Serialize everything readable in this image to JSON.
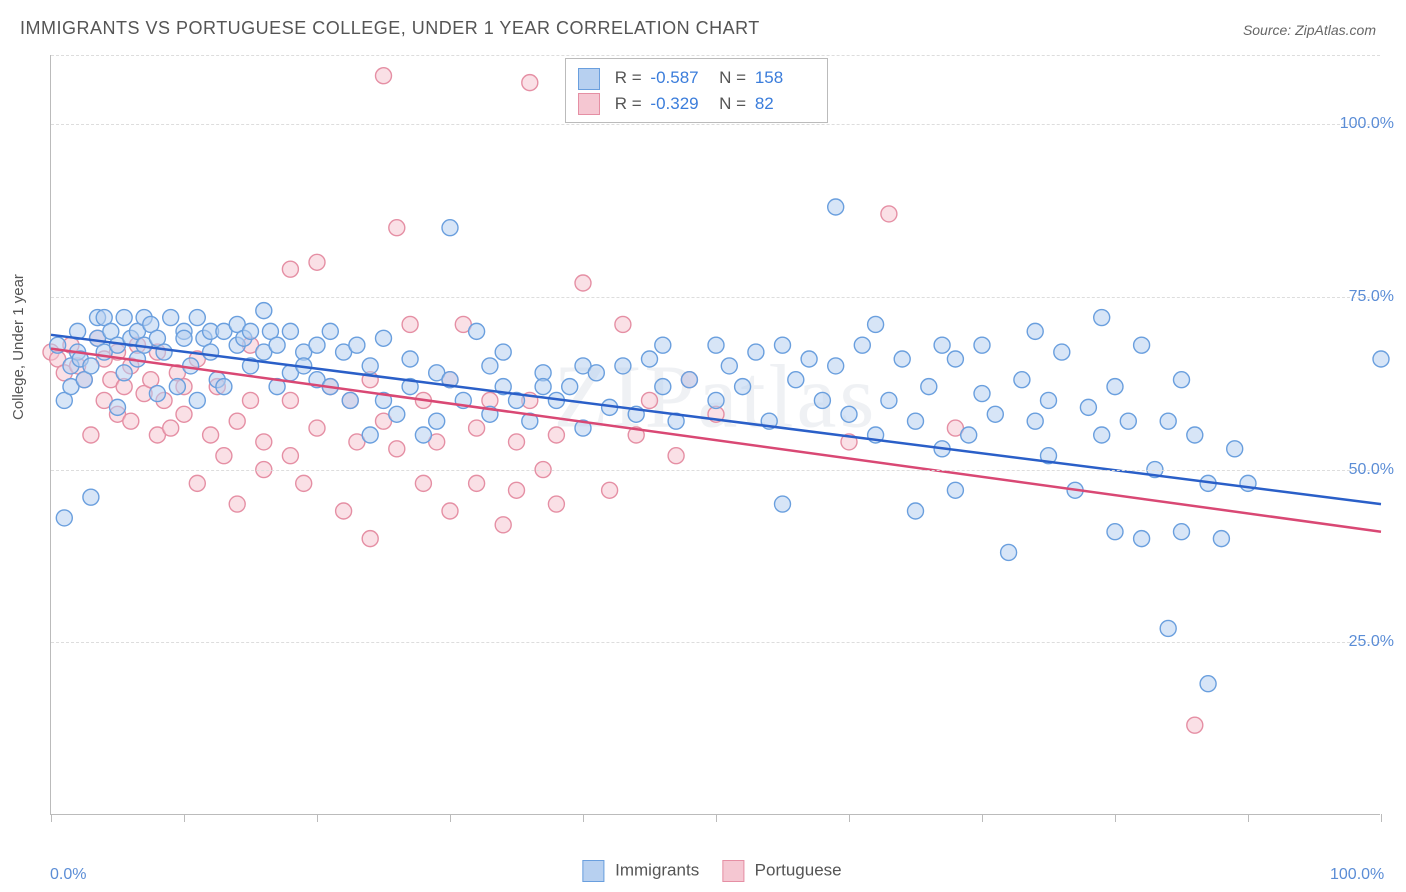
{
  "title": "IMMIGRANTS VS PORTUGUESE COLLEGE, UNDER 1 YEAR CORRELATION CHART",
  "source_label": "Source:",
  "source_value": "ZipAtlas.com",
  "y_axis_label": "College, Under 1 year",
  "watermark": "ZIPatlas",
  "chart": {
    "type": "scatter",
    "xlim": [
      0,
      100
    ],
    "ylim": [
      0,
      110
    ],
    "x_tick_positions": [
      0,
      10,
      20,
      30,
      40,
      50,
      60,
      70,
      80,
      90,
      100
    ],
    "x_labels": [
      {
        "val": 0,
        "text": "0.0%"
      },
      {
        "val": 100,
        "text": "100.0%"
      }
    ],
    "y_gridlines": [
      25,
      50,
      75,
      100,
      110
    ],
    "y_labels": [
      {
        "val": 25,
        "text": "25.0%"
      },
      {
        "val": 50,
        "text": "50.0%"
      },
      {
        "val": 75,
        "text": "75.0%"
      },
      {
        "val": 100,
        "text": "100.0%"
      }
    ],
    "background_color": "#ffffff",
    "grid_color": "#dddddd",
    "axis_color": "#bbbbbb",
    "marker_radius": 8,
    "marker_opacity": 0.55,
    "title_fontsize": 18,
    "label_fontsize": 15
  },
  "series": {
    "immigrants": {
      "label": "Immigrants",
      "fill_color": "#b7d0f0",
      "stroke_color": "#6a9fde",
      "line_color": "#2a5fc8",
      "R": "-0.587",
      "N": "158",
      "reg_line": {
        "x1": 0,
        "y1": 69.5,
        "x2": 100,
        "y2": 45
      },
      "points": [
        [
          0.5,
          68
        ],
        [
          1,
          43
        ],
        [
          1,
          60
        ],
        [
          1.5,
          62
        ],
        [
          1.5,
          65
        ],
        [
          2,
          67
        ],
        [
          2,
          70
        ],
        [
          2.2,
          66
        ],
        [
          2.5,
          63
        ],
        [
          3,
          46
        ],
        [
          3,
          65
        ],
        [
          3.5,
          69
        ],
        [
          3.5,
          72
        ],
        [
          4,
          67
        ],
        [
          4,
          72
        ],
        [
          4.5,
          70
        ],
        [
          5,
          68
        ],
        [
          5,
          59
        ],
        [
          5.5,
          72
        ],
        [
          5.5,
          64
        ],
        [
          6,
          69
        ],
        [
          6.5,
          70
        ],
        [
          6.5,
          66
        ],
        [
          7,
          72
        ],
        [
          7,
          68
        ],
        [
          7.5,
          71
        ],
        [
          8,
          61
        ],
        [
          8,
          69
        ],
        [
          8.5,
          67
        ],
        [
          9,
          72
        ],
        [
          9.5,
          62
        ],
        [
          10,
          70
        ],
        [
          10,
          69
        ],
        [
          10.5,
          65
        ],
        [
          11,
          72
        ],
        [
          11,
          60
        ],
        [
          11.5,
          69
        ],
        [
          12,
          67
        ],
        [
          12,
          70
        ],
        [
          12.5,
          63
        ],
        [
          13,
          70
        ],
        [
          13,
          62
        ],
        [
          14,
          68
        ],
        [
          14,
          71
        ],
        [
          14.5,
          69
        ],
        [
          15,
          65
        ],
        [
          15,
          70
        ],
        [
          16,
          67
        ],
        [
          16,
          73
        ],
        [
          16.5,
          70
        ],
        [
          17,
          62
        ],
        [
          17,
          68
        ],
        [
          18,
          64
        ],
        [
          18,
          70
        ],
        [
          19,
          67
        ],
        [
          19,
          65
        ],
        [
          20,
          63
        ],
        [
          20,
          68
        ],
        [
          21,
          70
        ],
        [
          21,
          62
        ],
        [
          22,
          67
        ],
        [
          22.5,
          60
        ],
        [
          23,
          68
        ],
        [
          24,
          55
        ],
        [
          24,
          65
        ],
        [
          25,
          60
        ],
        [
          25,
          69
        ],
        [
          26,
          58
        ],
        [
          27,
          62
        ],
        [
          27,
          66
        ],
        [
          28,
          55
        ],
        [
          29,
          64
        ],
        [
          29,
          57
        ],
        [
          30,
          63
        ],
        [
          30,
          85
        ],
        [
          31,
          60
        ],
        [
          32,
          70
        ],
        [
          33,
          58
        ],
        [
          33,
          65
        ],
        [
          34,
          62
        ],
        [
          34,
          67
        ],
        [
          35,
          60
        ],
        [
          36,
          57
        ],
        [
          37,
          64
        ],
        [
          37,
          62
        ],
        [
          38,
          60
        ],
        [
          39,
          62
        ],
        [
          40,
          56
        ],
        [
          40,
          65
        ],
        [
          41,
          64
        ],
        [
          42,
          59
        ],
        [
          43,
          65
        ],
        [
          44,
          58
        ],
        [
          45,
          66
        ],
        [
          46,
          62
        ],
        [
          46,
          68
        ],
        [
          47,
          57
        ],
        [
          48,
          63
        ],
        [
          50,
          60
        ],
        [
          50,
          68
        ],
        [
          51,
          65
        ],
        [
          52,
          62
        ],
        [
          53,
          67
        ],
        [
          54,
          57
        ],
        [
          55,
          68
        ],
        [
          55,
          45
        ],
        [
          56,
          63
        ],
        [
          57,
          66
        ],
        [
          58,
          60
        ],
        [
          59,
          65
        ],
        [
          59,
          88
        ],
        [
          60,
          58
        ],
        [
          61,
          68
        ],
        [
          62,
          55
        ],
        [
          62,
          71
        ],
        [
          63,
          60
        ],
        [
          64,
          66
        ],
        [
          65,
          44
        ],
        [
          65,
          57
        ],
        [
          66,
          62
        ],
        [
          67,
          53
        ],
        [
          67,
          68
        ],
        [
          68,
          47
        ],
        [
          68,
          66
        ],
        [
          69,
          55
        ],
        [
          70,
          61
        ],
        [
          70,
          68
        ],
        [
          71,
          58
        ],
        [
          72,
          38
        ],
        [
          73,
          63
        ],
        [
          74,
          57
        ],
        [
          74,
          70
        ],
        [
          75,
          52
        ],
        [
          75,
          60
        ],
        [
          76,
          67
        ],
        [
          77,
          47
        ],
        [
          78,
          59
        ],
        [
          79,
          55
        ],
        [
          79,
          72
        ],
        [
          80,
          41
        ],
        [
          80,
          62
        ],
        [
          81,
          57
        ],
        [
          82,
          40
        ],
        [
          82,
          68
        ],
        [
          83,
          50
        ],
        [
          84,
          57
        ],
        [
          84,
          27
        ],
        [
          85,
          63
        ],
        [
          85,
          41
        ],
        [
          86,
          55
        ],
        [
          87,
          48
        ],
        [
          87,
          19
        ],
        [
          88,
          40
        ],
        [
          89,
          53
        ],
        [
          90,
          48
        ],
        [
          100,
          66
        ]
      ]
    },
    "portuguese": {
      "label": "Portuguese",
      "fill_color": "#f5c7d2",
      "stroke_color": "#e58fa4",
      "line_color": "#d94874",
      "R": "-0.329",
      "N": "82",
      "reg_line": {
        "x1": 0,
        "y1": 67.5,
        "x2": 100,
        "y2": 41
      },
      "points": [
        [
          0,
          67
        ],
        [
          0.5,
          66
        ],
        [
          1,
          64
        ],
        [
          1.5,
          68
        ],
        [
          2,
          65
        ],
        [
          2.5,
          63
        ],
        [
          3,
          55
        ],
        [
          3.5,
          69
        ],
        [
          4,
          66
        ],
        [
          4,
          60
        ],
        [
          4.5,
          63
        ],
        [
          5,
          67
        ],
        [
          5,
          58
        ],
        [
          5.5,
          62
        ],
        [
          6,
          65
        ],
        [
          6,
          57
        ],
        [
          6.5,
          68
        ],
        [
          7,
          61
        ],
        [
          7.5,
          63
        ],
        [
          8,
          55
        ],
        [
          8,
          67
        ],
        [
          8.5,
          60
        ],
        [
          9,
          56
        ],
        [
          9.5,
          64
        ],
        [
          10,
          58
        ],
        [
          10,
          62
        ],
        [
          11,
          48
        ],
        [
          11,
          66
        ],
        [
          12,
          55
        ],
        [
          12.5,
          62
        ],
        [
          13,
          52
        ],
        [
          14,
          57
        ],
        [
          14,
          45
        ],
        [
          15,
          68
        ],
        [
          15,
          60
        ],
        [
          16,
          54
        ],
        [
          16,
          50
        ],
        [
          18,
          52
        ],
        [
          18,
          60
        ],
        [
          18,
          79
        ],
        [
          19,
          48
        ],
        [
          20,
          56
        ],
        [
          20,
          80
        ],
        [
          21,
          62
        ],
        [
          22,
          44
        ],
        [
          22.5,
          60
        ],
        [
          23,
          54
        ],
        [
          24,
          63
        ],
        [
          24,
          40
        ],
        [
          25,
          107
        ],
        [
          25,
          57
        ],
        [
          26,
          53
        ],
        [
          26,
          85
        ],
        [
          27,
          71
        ],
        [
          28,
          48
        ],
        [
          28,
          60
        ],
        [
          29,
          54
        ],
        [
          30,
          63
        ],
        [
          30,
          44
        ],
        [
          31,
          71
        ],
        [
          32,
          48
        ],
        [
          32,
          56
        ],
        [
          33,
          60
        ],
        [
          34,
          42
        ],
        [
          35,
          47
        ],
        [
          35,
          54
        ],
        [
          36,
          60
        ],
        [
          36,
          106
        ],
        [
          37,
          50
        ],
        [
          38,
          55
        ],
        [
          38,
          45
        ],
        [
          40,
          77
        ],
        [
          42,
          47
        ],
        [
          43,
          71
        ],
        [
          44,
          55
        ],
        [
          45,
          60
        ],
        [
          47,
          52
        ],
        [
          48,
          63
        ],
        [
          50,
          58
        ],
        [
          60,
          54
        ],
        [
          63,
          87
        ],
        [
          68,
          56
        ],
        [
          86,
          13
        ]
      ]
    }
  },
  "stats_legend_labels": {
    "R": "R =",
    "N": "N ="
  },
  "bottom_legend_order": [
    "immigrants",
    "portuguese"
  ]
}
